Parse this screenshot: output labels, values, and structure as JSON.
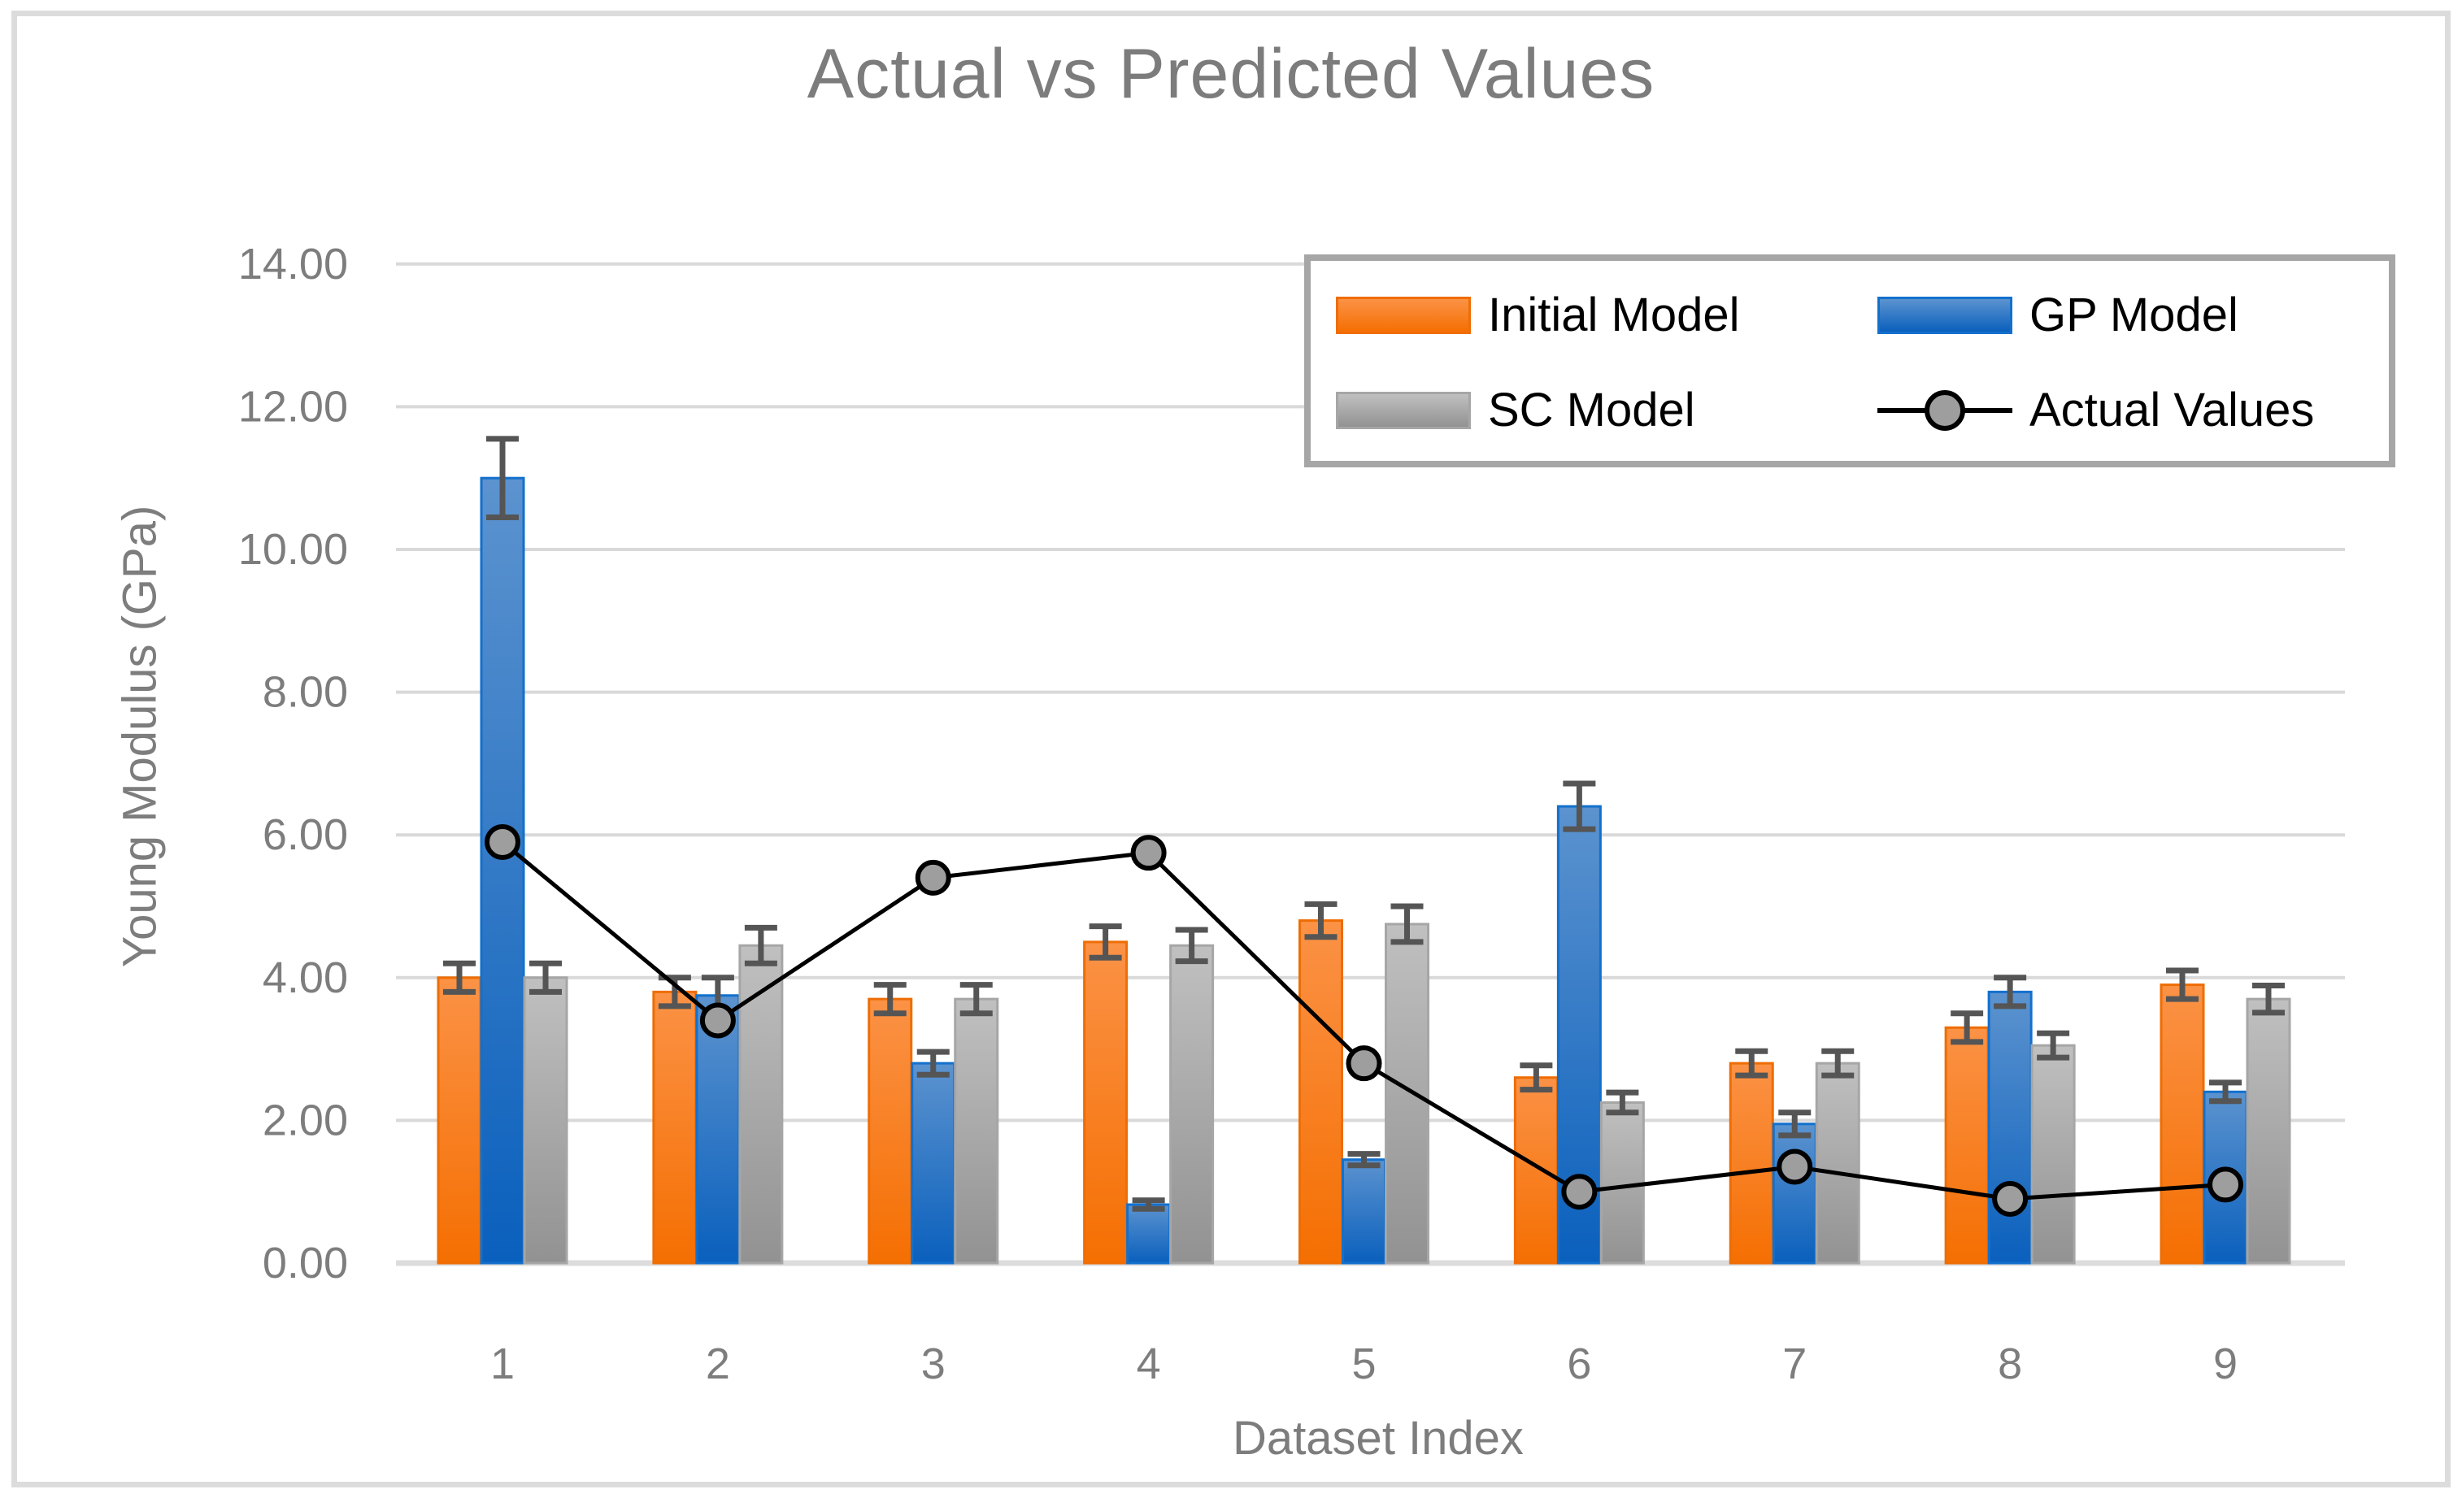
{
  "chart_data": {
    "type": "bar",
    "title": "Actual vs Predicted Values",
    "xlabel": "Dataset Index",
    "ylabel": "Young Modulus (GPa)",
    "categories": [
      "1",
      "2",
      "3",
      "4",
      "5",
      "6",
      "7",
      "8",
      "9"
    ],
    "ylim": [
      0,
      14
    ],
    "ytick_step": 2,
    "ytick_labels": [
      "0.00",
      "2.00",
      "4.00",
      "6.00",
      "8.00",
      "10.00",
      "12.00",
      "14.00"
    ],
    "grid": true,
    "legend_position": "inside-top-right",
    "series": [
      {
        "name": "Initial Model",
        "type": "bar",
        "values": [
          4.0,
          3.8,
          3.7,
          4.5,
          4.8,
          2.6,
          2.8,
          3.3,
          3.9
        ],
        "errors": [
          0.2,
          0.2,
          0.2,
          0.22,
          0.23,
          0.17,
          0.17,
          0.2,
          0.2
        ]
      },
      {
        "name": "GP Model",
        "type": "bar",
        "values": [
          11.0,
          3.75,
          2.8,
          0.82,
          1.45,
          6.4,
          1.95,
          3.8,
          2.4
        ],
        "errors": [
          0.55,
          0.25,
          0.16,
          0.06,
          0.08,
          0.32,
          0.16,
          0.2,
          0.13
        ]
      },
      {
        "name": "SC Model",
        "type": "bar",
        "values": [
          4.0,
          4.45,
          3.7,
          4.45,
          4.75,
          2.25,
          2.8,
          3.05,
          3.7
        ],
        "errors": [
          0.2,
          0.25,
          0.2,
          0.22,
          0.25,
          0.14,
          0.17,
          0.17,
          0.19
        ]
      },
      {
        "name": "Actual Values",
        "type": "line",
        "values": [
          5.9,
          3.4,
          5.4,
          5.75,
          2.8,
          1.0,
          1.35,
          0.9,
          1.1
        ]
      }
    ],
    "colors": {
      "initial_top": "#fb9246",
      "initial_bottom": "#f56f02",
      "initial_edge": "#ee6d05",
      "gp_top": "#5c93cf",
      "gp_bottom": "#0a60bd",
      "gp_edge": "#1370cc",
      "sc_top": "#c0c0c0",
      "sc_bottom": "#929292",
      "sc_edge": "#a6a6a6",
      "line": "#000000",
      "marker_fill": "#9e9e9e",
      "error_bar": "#555555",
      "gridline": "#d9d9d9",
      "baseline": "#dcdcdc",
      "text_gray": "#7d7d7d",
      "legend_border": "#a6a6a6",
      "frame_border": "#dcdcdc"
    }
  }
}
